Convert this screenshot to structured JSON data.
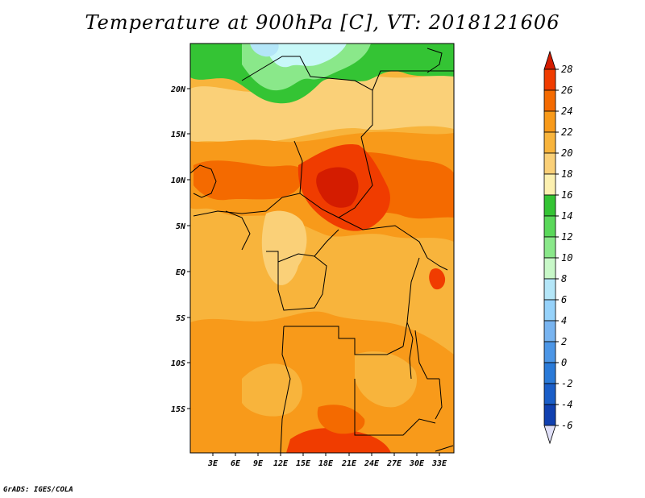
{
  "title": "Temperature at 900hPa [C], VT: 2018121606",
  "footer": "GrADS: IGES/COLA",
  "map": {
    "lat_labels": [
      "20N",
      "15N",
      "10N",
      "5N",
      "EQ",
      "5S",
      "10S",
      "15S"
    ],
    "lon_labels": [
      "3E",
      "6E",
      "9E",
      "12E",
      "15E",
      "18E",
      "21E",
      "24E",
      "27E",
      "30E",
      "33E"
    ]
  },
  "colorbar": {
    "labels": [
      "28",
      "26",
      "24",
      "22",
      "20",
      "18",
      "16",
      "14",
      "12",
      "10",
      "8",
      "6",
      "4",
      "2",
      "0",
      "-2",
      "-4",
      "-6"
    ],
    "colors": [
      "#d41c00",
      "#f03c00",
      "#f46a00",
      "#f89a1a",
      "#f8b43c",
      "#fad078",
      "#fcf0b0",
      "#34c434",
      "#5ad85a",
      "#8ae88a",
      "#c8f8c8",
      "#b4e6f8",
      "#96d2fa",
      "#78b4f0",
      "#4c96e6",
      "#2a7ad8",
      "#1a5ec8",
      "#1040b0",
      "#0a1e82"
    ],
    "under_color": "#e0e0f8"
  }
}
